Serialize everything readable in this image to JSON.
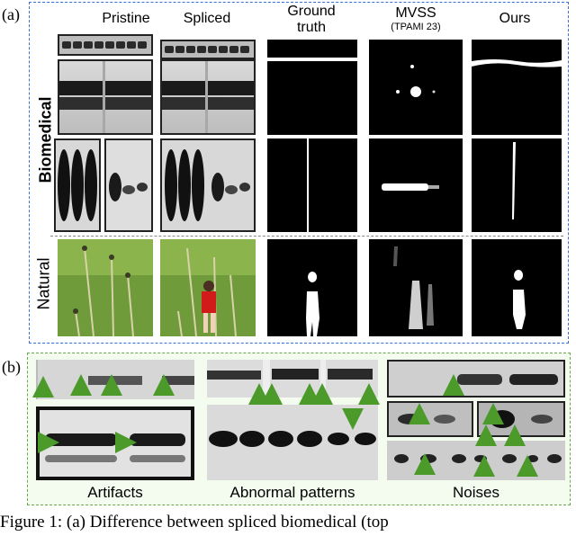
{
  "panel_a": {
    "tag": "(a)",
    "columns": {
      "pristine": "Pristine",
      "spliced": "Spliced",
      "ground_truth": "Ground\ntruth",
      "mvss": "MVSS",
      "mvss_sub": "(TPAMI 23)",
      "ours": "Ours"
    },
    "rows": {
      "biomedical": "Biomedical",
      "natural": "Natural"
    }
  },
  "panel_b": {
    "tag": "(b)",
    "captions": {
      "artifacts": "Artifacts",
      "abnormal": "Abnormal patterns",
      "noises": "Noises"
    }
  },
  "caption": "Figure 1: (a) Difference between spliced biomedical (top"
}
